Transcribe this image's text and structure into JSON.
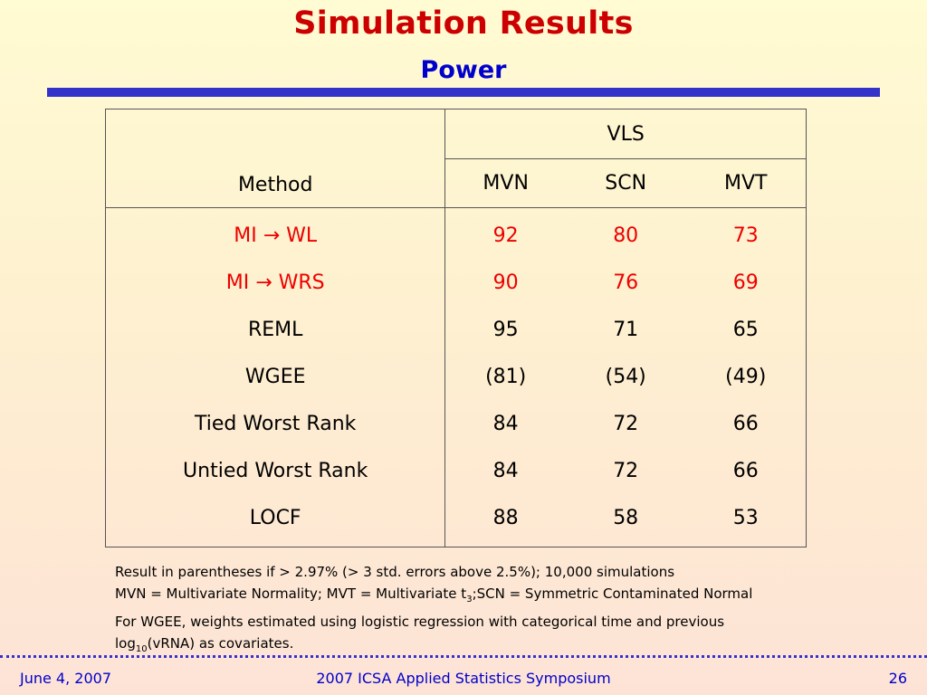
{
  "title": "Simulation Results",
  "subtitle": "Power",
  "table": {
    "header_group": "VLS",
    "method_header": "Method",
    "columns": [
      "MVN",
      "SCN",
      "MVT"
    ],
    "rows": [
      {
        "method": "MI → WL",
        "mvn": "92",
        "scn": "80",
        "mvt": "73",
        "highlight": true
      },
      {
        "method": "MI → WRS",
        "mvn": "90",
        "scn": "76",
        "mvt": "69",
        "highlight": true
      },
      {
        "method": "REML",
        "mvn": "95",
        "scn": "71",
        "mvt": "65",
        "highlight": false
      },
      {
        "method": "WGEE",
        "mvn": "(81)",
        "scn": "(54)",
        "mvt": "(49)",
        "highlight": false
      },
      {
        "method": "Tied Worst Rank",
        "mvn": "84",
        "scn": "72",
        "mvt": "66",
        "highlight": false
      },
      {
        "method": "Untied Worst Rank",
        "mvn": "84",
        "scn": "72",
        "mvt": "66",
        "highlight": false
      },
      {
        "method": "LOCF",
        "mvn": "88",
        "scn": "58",
        "mvt": "53",
        "highlight": false
      }
    ]
  },
  "notes": {
    "line1": "Result in parentheses if > 2.97% (> 3 std. errors above 2.5%); 10,000 simulations",
    "line2_a": "MVN = Multivariate Normality; MVT = Multivariate t",
    "line2_sub": "3",
    "line2_b": ";SCN = Symmetric Contaminated Normal",
    "line3": "For WGEE, weights estimated using logistic regression with categorical time and previous",
    "line4_a": "log",
    "line4_sub": "10",
    "line4_b": "(vRNA) as covariates."
  },
  "footer": {
    "date": "June 4, 2007",
    "event": "2007 ICSA Applied Statistics Symposium",
    "page": "26"
  },
  "colors": {
    "title": "#cc0000",
    "subtitle": "#0000cc",
    "rule": "#3333cc",
    "highlight": "#ee0000"
  }
}
